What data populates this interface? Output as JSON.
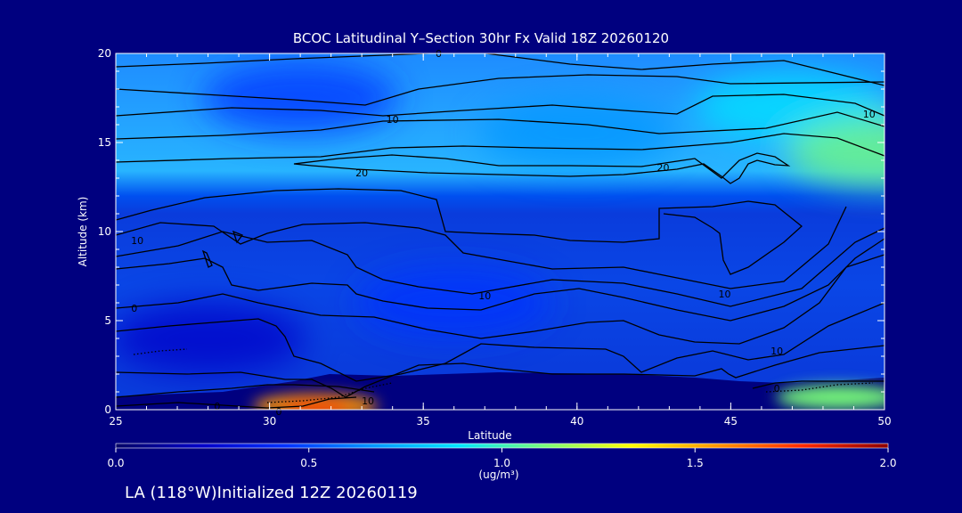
{
  "chart_data": {
    "type": "heatmap",
    "title": "BCOC Latitudinal Y–Section 30hr  Fx Valid 18Z 20260120",
    "xlabel": "Latitude",
    "ylabel": "Altitude (km)",
    "xlim": [
      25,
      50
    ],
    "ylim": [
      0,
      20
    ],
    "x_ticks": [
      "25",
      "30",
      "35",
      "40",
      "45",
      "50"
    ],
    "y_ticks": [
      "0",
      "5",
      "10",
      "15",
      "20"
    ],
    "colorbar": {
      "label": "(ug/m³)",
      "range": [
        0.0,
        2.0
      ],
      "ticks": [
        "0.0",
        "0.5",
        "1.0",
        "1.5",
        "2.0"
      ],
      "colors": [
        "#000066",
        "#0000c8",
        "#0032ff",
        "#0096ff",
        "#00e6ff",
        "#78ff78",
        "#ffff00",
        "#ff9600",
        "#ff2800",
        "#8c0000"
      ]
    },
    "contour_labels": [
      {
        "text": "0",
        "lat": 35.5,
        "alt": 20
      },
      {
        "text": "10",
        "lat": 34.0,
        "alt": 16.3
      },
      {
        "text": "10",
        "lat": 49.5,
        "alt": 16.6
      },
      {
        "text": "20",
        "lat": 33.0,
        "alt": 13.3
      },
      {
        "text": "20",
        "lat": 42.8,
        "alt": 13.6
      },
      {
        "text": "10",
        "lat": 25.7,
        "alt": 9.5
      },
      {
        "text": "0",
        "lat": 25.6,
        "alt": 5.7
      },
      {
        "text": "10",
        "lat": 37.0,
        "alt": 6.4
      },
      {
        "text": "10",
        "lat": 44.8,
        "alt": 6.5
      },
      {
        "text": "10",
        "lat": 46.5,
        "alt": 3.3
      },
      {
        "text": "0",
        "lat": 28.3,
        "alt": 0.2
      },
      {
        "text": "0",
        "lat": 30.3,
        "alt": -0.1
      },
      {
        "text": "10",
        "lat": 33.2,
        "alt": 0.5
      },
      {
        "text": "0",
        "lat": 46.5,
        "alt": 1.2
      }
    ],
    "concentration_field": [
      {
        "lat": 47.0,
        "alt": 17.0,
        "value": 0.85
      },
      {
        "lat": 50.0,
        "alt": 14.5,
        "value": 1.05
      },
      {
        "lat": 31.0,
        "alt": 17.5,
        "value": 0.55
      },
      {
        "lat": 40.0,
        "alt": 15.5,
        "value": 0.65
      },
      {
        "lat": 36.0,
        "alt": 6.0,
        "value": 0.35
      },
      {
        "lat": 31.5,
        "alt": 0.2,
        "value": 1.55
      },
      {
        "lat": 48.5,
        "alt": 0.7,
        "value": 1.1
      },
      {
        "lat": 28.0,
        "alt": 4.0,
        "value": 0.15
      }
    ]
  },
  "footer": "LA (118°W)Initialized 12Z 20260119"
}
